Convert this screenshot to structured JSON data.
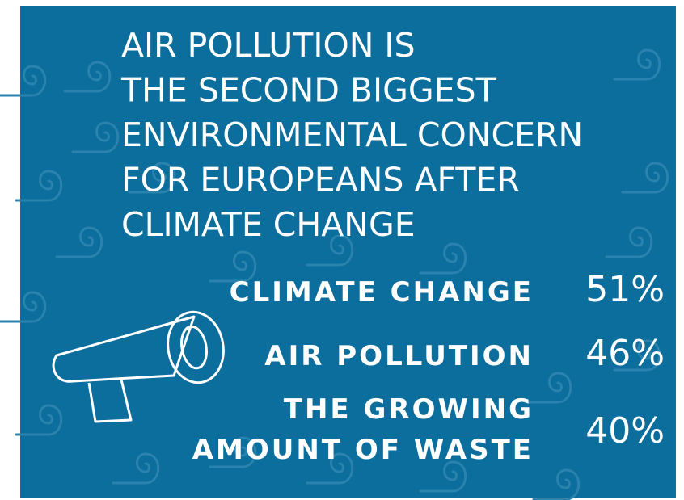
{
  "title_lines": [
    "AIR POLLUTION IS",
    "THE SECOND BIGGEST",
    "ENVIRONMENTAL CONCERN",
    "FOR EUROPEANS AFTER",
    "CLIMATE CHANGE"
  ],
  "items": [
    {
      "label_lines": [
        "CLIMATE CHANGE"
      ],
      "value": "51%"
    },
    {
      "label_lines": [
        "AIR POLLUTION"
      ],
      "value": "46%"
    },
    {
      "label_lines": [
        "THE GROWING",
        "AMOUNT OF WASTE"
      ],
      "value": "40%"
    }
  ]
}
